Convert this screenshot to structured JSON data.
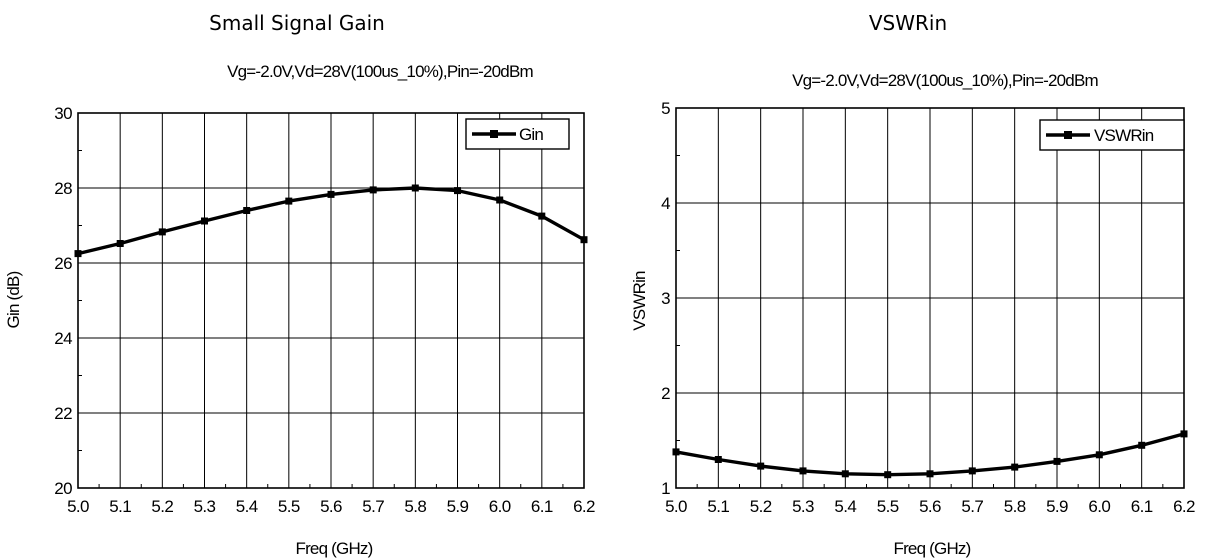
{
  "chart_data": [
    {
      "type": "line",
      "title": "Small Signal Gain",
      "subtitle": "Vg=-2.0V,Vd=28V(100us_10%),Pin=-20dBm",
      "xlabel": "Freq (GHz)",
      "ylabel": "Gin (dB)",
      "xlim": [
        5.0,
        6.2
      ],
      "ylim": [
        20,
        30
      ],
      "xticks": [
        "5.0",
        "5.1",
        "5.2",
        "5.3",
        "5.4",
        "5.5",
        "5.6",
        "5.7",
        "5.8",
        "5.9",
        "6.0",
        "6.1",
        "6.2"
      ],
      "yticks": [
        "20",
        "22",
        "24",
        "26",
        "28",
        "30"
      ],
      "grid": true,
      "legend_position": "top-right",
      "series": [
        {
          "name": "Gin",
          "color": "#000000",
          "x": [
            5.0,
            5.1,
            5.2,
            5.3,
            5.4,
            5.5,
            5.6,
            5.7,
            5.8,
            5.9,
            6.0,
            6.1,
            6.2
          ],
          "y": [
            26.25,
            26.52,
            26.83,
            27.12,
            27.4,
            27.65,
            27.83,
            27.95,
            28.0,
            27.93,
            27.68,
            27.25,
            26.62
          ]
        }
      ]
    },
    {
      "type": "line",
      "title": "VSWRin",
      "subtitle": "Vg=-2.0V,Vd=28V(100us_10%),Pin=-20dBm",
      "xlabel": "Freq (GHz)",
      "ylabel": "VSWRin",
      "xlim": [
        5.0,
        6.2
      ],
      "ylim": [
        1,
        5
      ],
      "xticks": [
        "5.0",
        "5.1",
        "5.2",
        "5.3",
        "5.4",
        "5.5",
        "5.6",
        "5.7",
        "5.8",
        "5.9",
        "6.0",
        "6.1",
        "6.2"
      ],
      "yticks": [
        "1",
        "2",
        "3",
        "4",
        "5"
      ],
      "grid": true,
      "legend_position": "top-right",
      "series": [
        {
          "name": "VSWRin",
          "color": "#000000",
          "x": [
            5.0,
            5.1,
            5.2,
            5.3,
            5.4,
            5.5,
            5.6,
            5.7,
            5.8,
            5.9,
            6.0,
            6.1,
            6.2
          ],
          "y": [
            1.38,
            1.3,
            1.23,
            1.18,
            1.15,
            1.14,
            1.15,
            1.18,
            1.22,
            1.28,
            1.35,
            1.45,
            1.57
          ]
        }
      ]
    }
  ]
}
